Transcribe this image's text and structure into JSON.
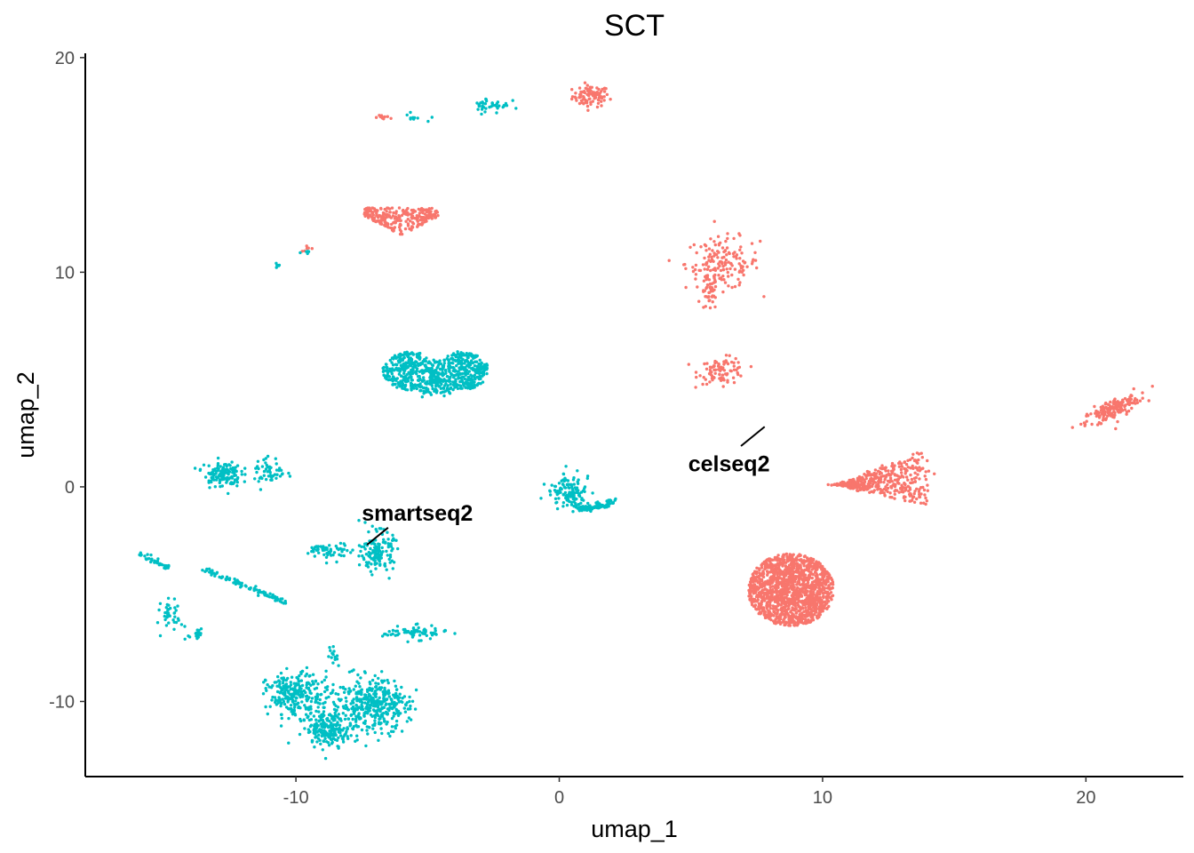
{
  "chart_data": {
    "type": "scatter",
    "title": "SCT",
    "xlabel": "umap_1",
    "ylabel": "umap_2",
    "xlim": [
      -18,
      23.7
    ],
    "ylim": [
      -13.5,
      20.2
    ],
    "xticks": [
      -10,
      0,
      10,
      20
    ],
    "yticks": [
      -10,
      0,
      10,
      20
    ],
    "xtick_labels": [
      "-10",
      "0",
      "10",
      "20"
    ],
    "ytick_labels": [
      "-10",
      "0",
      "10",
      "20"
    ],
    "grid": false,
    "legend": "none",
    "series": [
      {
        "color": "#F8766D",
        "clusters": [
          {
            "cx": 1.2,
            "cy": 18.2,
            "sx": 0.35,
            "sy": 0.25,
            "n": 90,
            "shape": "blob"
          },
          {
            "cx": -6.6,
            "cy": 17.2,
            "sx": 0.2,
            "sy": 0.05,
            "n": 10,
            "shape": "blob"
          },
          {
            "cx": -6.0,
            "cy": 12.6,
            "sx": 1.0,
            "sy": 0.3,
            "n": 260,
            "shape": "triangle-down"
          },
          {
            "cx": 6.2,
            "cy": 10.4,
            "sx": 0.7,
            "sy": 0.6,
            "n": 160,
            "shape": "blob"
          },
          {
            "cx": 5.7,
            "cy": 9.0,
            "sx": 0.15,
            "sy": 0.4,
            "n": 40,
            "shape": "blob"
          },
          {
            "cx": 6.2,
            "cy": 5.4,
            "sx": 0.45,
            "sy": 0.3,
            "n": 90,
            "shape": "blob"
          },
          {
            "cx": 21.0,
            "cy": 3.6,
            "sx": 0.6,
            "sy": 0.35,
            "n": 180,
            "shape": "tilted"
          },
          {
            "cx": 12.7,
            "cy": 0.4,
            "sx": 1.1,
            "sy": 0.6,
            "n": 420,
            "shape": "fan"
          },
          {
            "cx": 8.8,
            "cy": -4.8,
            "sx": 1.3,
            "sy": 1.3,
            "n": 1400,
            "shape": "disc"
          },
          {
            "cx": -9.5,
            "cy": 11.1,
            "sx": 0.15,
            "sy": 0.08,
            "n": 6,
            "shape": "blob"
          }
        ]
      },
      {
        "color": "#00BFC4",
        "clusters": [
          {
            "cx": -2.6,
            "cy": 17.8,
            "sx": 0.35,
            "sy": 0.2,
            "n": 40,
            "shape": "blob"
          },
          {
            "cx": -5.5,
            "cy": 17.2,
            "sx": 0.3,
            "sy": 0.1,
            "n": 10,
            "shape": "blob"
          },
          {
            "cx": -4.7,
            "cy": 5.4,
            "sx": 1.5,
            "sy": 0.5,
            "n": 750,
            "shape": "heart"
          },
          {
            "cx": -12.8,
            "cy": 0.6,
            "sx": 0.35,
            "sy": 0.3,
            "n": 130,
            "shape": "blob"
          },
          {
            "cx": -11.0,
            "cy": 0.7,
            "sx": 0.3,
            "sy": 0.35,
            "n": 50,
            "shape": "blob"
          },
          {
            "cx": 0.5,
            "cy": -0.4,
            "sx": 0.6,
            "sy": 0.4,
            "n": 210,
            "shape": "hook"
          },
          {
            "cx": -8.7,
            "cy": -3.0,
            "sx": 0.4,
            "sy": 0.2,
            "n": 60,
            "shape": "blob"
          },
          {
            "cx": -6.9,
            "cy": -3.0,
            "sx": 0.3,
            "sy": 0.45,
            "n": 140,
            "shape": "blob"
          },
          {
            "cx": -15.1,
            "cy": -3.5,
            "sx": 0.6,
            "sy": 0.1,
            "n": 40,
            "shape": "line",
            "x1": -16.0,
            "y1": -3.1,
            "x2": -14.8,
            "y2": -3.8
          },
          {
            "cx": -11.9,
            "cy": -4.6,
            "sx": 1.2,
            "sy": 0.1,
            "n": 90,
            "shape": "line",
            "x1": -13.4,
            "y1": -3.9,
            "x2": -10.4,
            "y2": -5.4
          },
          {
            "cx": -14.7,
            "cy": -6.0,
            "sx": 0.2,
            "sy": 0.35,
            "n": 40,
            "shape": "blob"
          },
          {
            "cx": -13.8,
            "cy": -6.8,
            "sx": 0.15,
            "sy": 0.25,
            "n": 20,
            "shape": "blob"
          },
          {
            "cx": -5.5,
            "cy": -6.8,
            "sx": 0.6,
            "sy": 0.15,
            "n": 70,
            "shape": "blob"
          },
          {
            "cx": -10.1,
            "cy": -9.7,
            "sx": 0.5,
            "sy": 0.5,
            "n": 220,
            "shape": "blob"
          },
          {
            "cx": -8.7,
            "cy": -11.3,
            "sx": 0.45,
            "sy": 0.35,
            "n": 190,
            "shape": "blob"
          },
          {
            "cx": -7.0,
            "cy": -10.2,
            "sx": 0.65,
            "sy": 0.55,
            "n": 330,
            "shape": "blob"
          },
          {
            "cx": -8.5,
            "cy": -10.0,
            "sx": 1.1,
            "sy": 0.8,
            "n": 120,
            "shape": "blob"
          },
          {
            "cx": -10.7,
            "cy": 10.3,
            "sx": 0.05,
            "sy": 0.08,
            "n": 6,
            "shape": "blob"
          },
          {
            "cx": -9.6,
            "cy": 11.0,
            "sx": 0.1,
            "sy": 0.05,
            "n": 5,
            "shape": "blob"
          },
          {
            "cx": -8.6,
            "cy": -7.7,
            "sx": 0.15,
            "sy": 0.2,
            "n": 12,
            "shape": "blob"
          }
        ]
      }
    ],
    "annotations": [
      {
        "text": "smartseq2",
        "x": -7.5,
        "y": -1.2,
        "seg": [
          -7.3,
          -2.7,
          -6.5,
          -1.9
        ]
      },
      {
        "text": "celseq2",
        "x": 4.9,
        "y": 1.1,
        "seg": [
          6.9,
          1.9,
          7.8,
          2.8
        ]
      }
    ]
  }
}
